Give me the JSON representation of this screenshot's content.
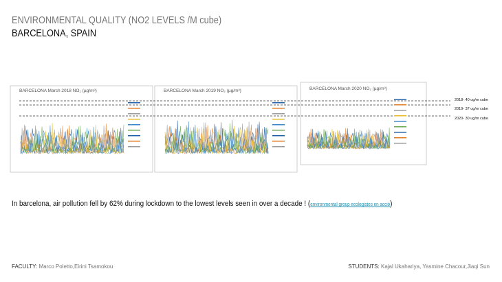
{
  "header": {
    "title": "ENVIRONMENTAL QUALITY (NO2 LEVELS /M cube)",
    "subtitle": "BARCELONA, SPAIN"
  },
  "figures": [
    {
      "title": "BARCELONA March 2018 NO₂ (µg/m³)"
    },
    {
      "title": "BARCELONA March 2019 NO₂ (µg/m³)"
    },
    {
      "title": "BARCELONA March 2020 NO₂ (µg/m³)"
    }
  ],
  "annotations": [
    "2018- 40 ug/m cube",
    "2019- 37 ug/m cube",
    "2020- 30 ug/m cube"
  ],
  "body": {
    "text": "In barcelona, air pollution fell by 62% during lockdown to the lowest levels seen in over a decade ! (",
    "link": "environmental group ecologistes en acció",
    "after": ")"
  },
  "footer": {
    "faculty_label": "FACULTY:",
    "faculty": "Marco Poletto,Eirini Tsamokou",
    "students_label": "STUDENTS:",
    "students": "Kajal Ukahariya, Yasmine Chacour,Jiaqi Sun"
  }
}
